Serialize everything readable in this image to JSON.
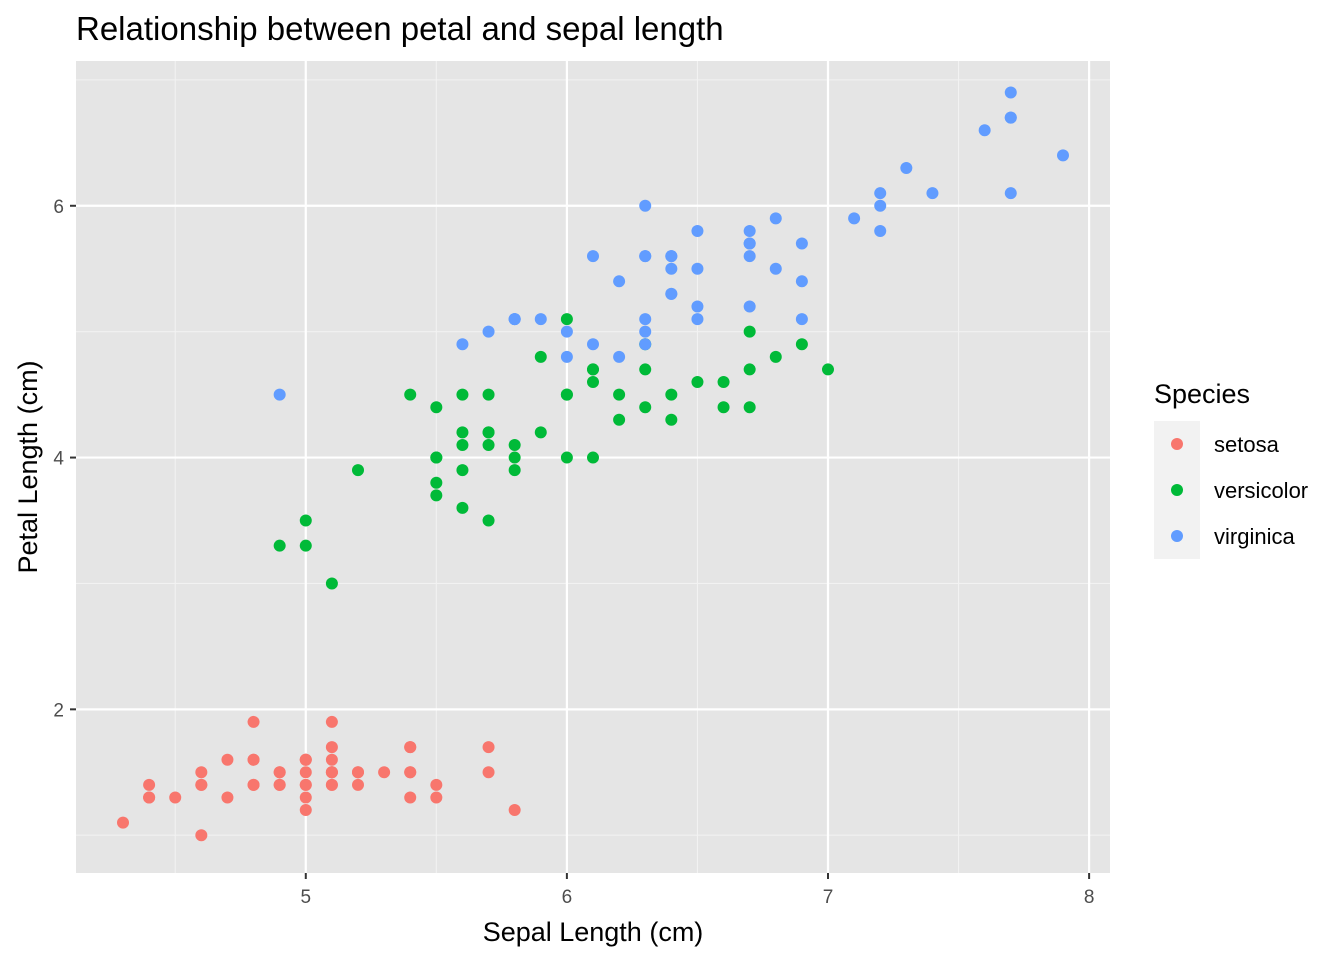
{
  "chart_data": {
    "type": "scatter",
    "title": "Relationship between petal and sepal length",
    "xlabel": "Sepal Length (cm)",
    "ylabel": "Petal Length (cm)",
    "xlim": [
      4.12,
      8.08
    ],
    "ylim": [
      0.7,
      7.15
    ],
    "x_ticks": [
      5,
      6,
      7,
      8
    ],
    "y_ticks": [
      2,
      4,
      6
    ],
    "x_minor": [
      4.5,
      5.5,
      6.5,
      7.5
    ],
    "y_minor": [
      1,
      3,
      5,
      7
    ],
    "grid": true,
    "background": "#e5e5e5",
    "legend": {
      "title": "Species",
      "position": "right"
    },
    "series": [
      {
        "name": "setosa",
        "color": "#f8766d",
        "points": [
          [
            5.1,
            1.4
          ],
          [
            4.9,
            1.4
          ],
          [
            4.7,
            1.3
          ],
          [
            4.6,
            1.5
          ],
          [
            5.0,
            1.4
          ],
          [
            5.4,
            1.7
          ],
          [
            4.6,
            1.4
          ],
          [
            5.0,
            1.5
          ],
          [
            4.4,
            1.4
          ],
          [
            4.9,
            1.5
          ],
          [
            5.4,
            1.5
          ],
          [
            4.8,
            1.6
          ],
          [
            4.8,
            1.4
          ],
          [
            4.3,
            1.1
          ],
          [
            5.8,
            1.2
          ],
          [
            5.7,
            1.5
          ],
          [
            5.4,
            1.3
          ],
          [
            5.1,
            1.4
          ],
          [
            5.7,
            1.7
          ],
          [
            5.1,
            1.5
          ],
          [
            5.4,
            1.7
          ],
          [
            5.1,
            1.5
          ],
          [
            4.6,
            1.0
          ],
          [
            5.1,
            1.7
          ],
          [
            4.8,
            1.9
          ],
          [
            5.0,
            1.6
          ],
          [
            5.0,
            1.6
          ],
          [
            5.2,
            1.5
          ],
          [
            5.2,
            1.4
          ],
          [
            4.7,
            1.6
          ],
          [
            4.8,
            1.6
          ],
          [
            5.4,
            1.5
          ],
          [
            5.2,
            1.5
          ],
          [
            5.5,
            1.4
          ],
          [
            4.9,
            1.5
          ],
          [
            5.0,
            1.2
          ],
          [
            5.5,
            1.3
          ],
          [
            4.9,
            1.4
          ],
          [
            4.4,
            1.3
          ],
          [
            5.1,
            1.5
          ],
          [
            5.0,
            1.3
          ],
          [
            4.5,
            1.3
          ],
          [
            4.4,
            1.3
          ],
          [
            5.0,
            1.6
          ],
          [
            5.1,
            1.9
          ],
          [
            4.8,
            1.4
          ],
          [
            5.1,
            1.6
          ],
          [
            4.6,
            1.4
          ],
          [
            5.3,
            1.5
          ],
          [
            5.0,
            1.4
          ]
        ]
      },
      {
        "name": "versicolor",
        "color": "#00ba38",
        "points": [
          [
            7.0,
            4.7
          ],
          [
            6.4,
            4.5
          ],
          [
            6.9,
            4.9
          ],
          [
            5.5,
            4.0
          ],
          [
            6.5,
            4.6
          ],
          [
            5.7,
            4.5
          ],
          [
            6.3,
            4.7
          ],
          [
            4.9,
            3.3
          ],
          [
            6.6,
            4.6
          ],
          [
            5.2,
            3.9
          ],
          [
            5.0,
            3.5
          ],
          [
            5.9,
            4.2
          ],
          [
            6.0,
            4.0
          ],
          [
            6.1,
            4.7
          ],
          [
            5.6,
            3.6
          ],
          [
            6.7,
            4.4
          ],
          [
            5.6,
            4.5
          ],
          [
            5.8,
            4.1
          ],
          [
            6.2,
            4.5
          ],
          [
            5.6,
            3.9
          ],
          [
            5.9,
            4.8
          ],
          [
            6.1,
            4.0
          ],
          [
            6.3,
            4.9
          ],
          [
            6.1,
            4.7
          ],
          [
            6.4,
            4.3
          ],
          [
            6.6,
            4.4
          ],
          [
            6.8,
            4.8
          ],
          [
            6.7,
            5.0
          ],
          [
            6.0,
            4.5
          ],
          [
            5.7,
            3.5
          ],
          [
            5.5,
            3.8
          ],
          [
            5.5,
            3.7
          ],
          [
            5.8,
            3.9
          ],
          [
            6.0,
            5.1
          ],
          [
            5.4,
            4.5
          ],
          [
            6.0,
            4.5
          ],
          [
            6.7,
            4.7
          ],
          [
            6.3,
            4.4
          ],
          [
            5.6,
            4.1
          ],
          [
            5.5,
            4.0
          ],
          [
            5.5,
            4.4
          ],
          [
            6.1,
            4.6
          ],
          [
            5.8,
            4.0
          ],
          [
            5.0,
            3.3
          ],
          [
            5.6,
            4.2
          ],
          [
            5.7,
            4.2
          ],
          [
            5.7,
            4.2
          ],
          [
            6.2,
            4.3
          ],
          [
            5.1,
            3.0
          ],
          [
            5.7,
            4.1
          ]
        ]
      },
      {
        "name": "virginica",
        "color": "#619cff",
        "points": [
          [
            6.3,
            6.0
          ],
          [
            5.8,
            5.1
          ],
          [
            7.1,
            5.9
          ],
          [
            6.3,
            5.6
          ],
          [
            6.5,
            5.8
          ],
          [
            7.6,
            6.6
          ],
          [
            4.9,
            4.5
          ],
          [
            7.3,
            6.3
          ],
          [
            6.7,
            5.8
          ],
          [
            7.2,
            6.1
          ],
          [
            6.5,
            5.1
          ],
          [
            6.4,
            5.3
          ],
          [
            6.8,
            5.5
          ],
          [
            5.7,
            5.0
          ],
          [
            5.8,
            5.1
          ],
          [
            6.4,
            5.3
          ],
          [
            6.5,
            5.5
          ],
          [
            7.7,
            6.7
          ],
          [
            7.7,
            6.9
          ],
          [
            6.0,
            5.0
          ],
          [
            6.9,
            5.7
          ],
          [
            5.6,
            4.9
          ],
          [
            7.7,
            6.7
          ],
          [
            6.3,
            4.9
          ],
          [
            6.7,
            5.7
          ],
          [
            7.2,
            6.0
          ],
          [
            6.2,
            4.8
          ],
          [
            6.1,
            4.9
          ],
          [
            6.4,
            5.6
          ],
          [
            7.2,
            5.8
          ],
          [
            7.4,
            6.1
          ],
          [
            7.9,
            6.4
          ],
          [
            6.4,
            5.6
          ],
          [
            6.3,
            5.1
          ],
          [
            6.1,
            5.6
          ],
          [
            7.7,
            6.1
          ],
          [
            6.3,
            5.6
          ],
          [
            6.4,
            5.5
          ],
          [
            6.0,
            4.8
          ],
          [
            6.9,
            5.4
          ],
          [
            6.7,
            5.6
          ],
          [
            6.9,
            5.1
          ],
          [
            5.8,
            5.1
          ],
          [
            6.8,
            5.9
          ],
          [
            6.7,
            5.7
          ],
          [
            6.7,
            5.2
          ],
          [
            6.3,
            5.0
          ],
          [
            6.5,
            5.2
          ],
          [
            6.2,
            5.4
          ],
          [
            5.9,
            5.1
          ]
        ]
      }
    ]
  }
}
